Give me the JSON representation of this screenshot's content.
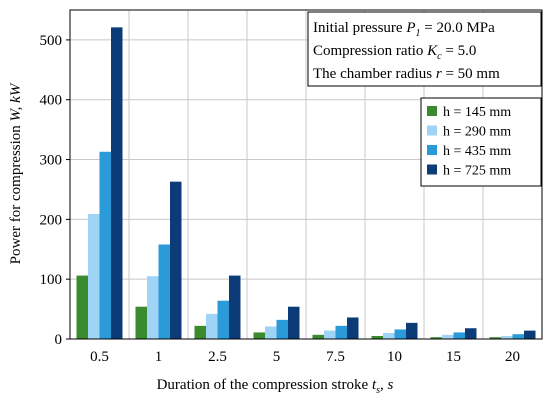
{
  "chart_data": {
    "type": "bar",
    "categories": [
      "0.5",
      "1",
      "2.5",
      "5",
      "7.5",
      "10",
      "15",
      "20"
    ],
    "series": [
      {
        "name": "h = 145 mm",
        "color": "#3a8a2e",
        "values": [
          106,
          54,
          22,
          11,
          7,
          5,
          3,
          3
        ]
      },
      {
        "name": "h = 290 mm",
        "color": "#9fd4f7",
        "values": [
          209,
          105,
          42,
          21,
          14,
          10,
          7,
          5
        ]
      },
      {
        "name": "h = 435 mm",
        "color": "#2a9ad8",
        "values": [
          313,
          158,
          64,
          32,
          22,
          16,
          11,
          8
        ]
      },
      {
        "name": "h = 725 mm",
        "color": "#0c3c78",
        "values": [
          521,
          263,
          106,
          54,
          36,
          27,
          18,
          14
        ]
      }
    ],
    "xlabel": {
      "main": "Duration of the compression stroke ",
      "var": "t",
      "sub": "s",
      "unit": ", s"
    },
    "ylabel": {
      "main": "Power for compression ",
      "var": "W",
      "unit": ", kW"
    },
    "ylim": [
      0,
      550
    ],
    "yticks": [
      0,
      100,
      200,
      300,
      400,
      500
    ],
    "grid": true,
    "legend_position": "right",
    "annotation": {
      "line1": {
        "pre": "Initial pressure ",
        "var": "P",
        "sub": "1",
        "post": " = 20.0 MPa"
      },
      "line2": {
        "pre": "Compression ratio ",
        "var": "K",
        "sub": "c",
        "post": " = 5.0"
      },
      "line3": {
        "pre": "The chamber radius ",
        "var": "r",
        "post": " = 50 mm"
      }
    }
  }
}
